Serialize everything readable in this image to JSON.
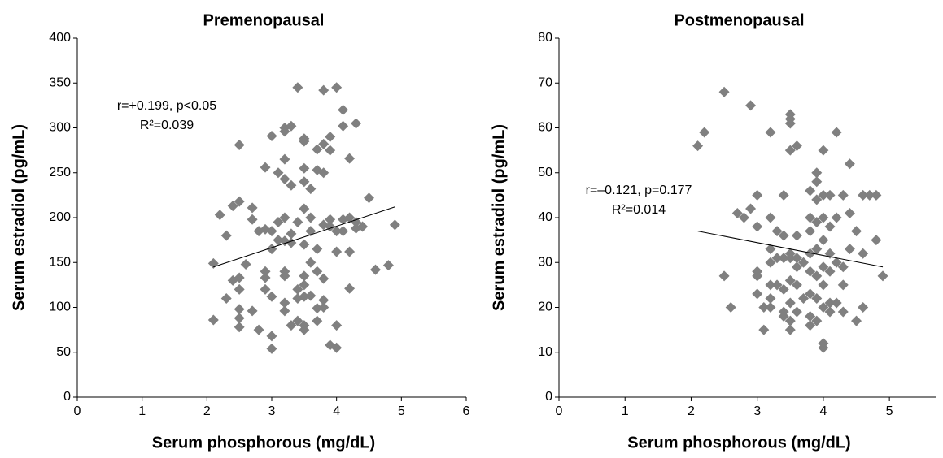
{
  "chart_data": [
    {
      "type": "scatter",
      "title": "Premenopausal",
      "x_label": "Serum phosphorous (mg/dL)",
      "y_label": "Serum estradiol (pg/mL)",
      "xlim": [
        0,
        6
      ],
      "xticks": [
        0,
        1,
        2,
        3,
        4,
        5,
        6
      ],
      "ylim": [
        0,
        400
      ],
      "yticks": [
        0,
        50,
        100,
        150,
        200,
        250,
        300,
        350,
        400
      ],
      "color": "#808080",
      "x": [
        2.1,
        2.1,
        2.2,
        2.3,
        2.3,
        2.4,
        2.4,
        2.5,
        2.5,
        2.5,
        2.5,
        2.5,
        2.5,
        2.5,
        2.6,
        2.7,
        2.7,
        2.7,
        2.8,
        2.8,
        2.9,
        2.9,
        2.9,
        2.9,
        2.9,
        3.0,
        3.0,
        3.0,
        3.0,
        3.0,
        3.0,
        3.1,
        3.1,
        3.1,
        3.2,
        3.2,
        3.2,
        3.2,
        3.2,
        3.2,
        3.2,
        3.2,
        3.2,
        3.2,
        3.3,
        3.3,
        3.3,
        3.3,
        3.3,
        3.4,
        3.4,
        3.4,
        3.4,
        3.4,
        3.5,
        3.5,
        3.5,
        3.5,
        3.5,
        3.5,
        3.5,
        3.5,
        3.5,
        3.5,
        3.5,
        3.6,
        3.6,
        3.6,
        3.6,
        3.6,
        3.7,
        3.7,
        3.7,
        3.7,
        3.7,
        3.7,
        3.8,
        3.8,
        3.8,
        3.8,
        3.8,
        3.8,
        3.8,
        3.9,
        3.9,
        3.9,
        3.9,
        3.9,
        4.0,
        4.0,
        4.0,
        4.0,
        4.0,
        4.1,
        4.1,
        4.1,
        4.1,
        4.2,
        4.2,
        4.2,
        4.2,
        4.3,
        4.3,
        4.3,
        4.4,
        4.5,
        4.6,
        4.8,
        4.9
      ],
      "values": [
        86,
        149,
        203,
        180,
        110,
        213,
        130,
        218,
        133,
        120,
        98,
        88,
        78,
        281,
        148,
        198,
        211,
        96,
        75,
        185,
        256,
        187,
        140,
        133,
        120,
        68,
        54,
        291,
        165,
        185,
        112,
        250,
        195,
        175,
        296,
        300,
        265,
        243,
        200,
        174,
        140,
        135,
        105,
        96,
        302,
        236,
        182,
        172,
        80,
        345,
        195,
        120,
        110,
        85,
        288,
        285,
        255,
        240,
        210,
        170,
        135,
        125,
        112,
        80,
        75,
        232,
        200,
        185,
        150,
        113,
        276,
        253,
        165,
        140,
        99,
        85,
        342,
        282,
        250,
        192,
        132,
        108,
        100,
        290,
        275,
        198,
        190,
        58,
        345,
        185,
        162,
        80,
        55,
        320,
        302,
        198,
        185,
        266,
        200,
        162,
        121,
        305,
        195,
        188,
        190,
        222,
        142,
        147,
        192
      ],
      "trend": {
        "x": [
          2.1,
          4.9
        ],
        "y": [
          145,
          212
        ]
      },
      "annotations": [
        "r=+0.199, p<0.05",
        "R²=0.039"
      ]
    },
    {
      "type": "scatter",
      "title": "Postmenopausal",
      "x_label": "Serum phosphorous (mg/dL)",
      "y_label": "Serum estradiol (pg/mL)",
      "xlim": [
        0,
        5.7
      ],
      "xticks": [
        0,
        1,
        2,
        3,
        4,
        5
      ],
      "ylim": [
        0,
        80
      ],
      "yticks": [
        0,
        10,
        20,
        30,
        40,
        50,
        60,
        70,
        80
      ],
      "color": "#808080",
      "x": [
        2.1,
        2.2,
        2.5,
        2.5,
        2.6,
        2.7,
        2.8,
        2.9,
        2.9,
        3.0,
        3.0,
        3.0,
        3.0,
        3.0,
        3.1,
        3.1,
        3.2,
        3.2,
        3.2,
        3.2,
        3.2,
        3.2,
        3.2,
        3.3,
        3.3,
        3.3,
        3.4,
        3.4,
        3.4,
        3.4,
        3.4,
        3.4,
        3.5,
        3.5,
        3.5,
        3.5,
        3.5,
        3.5,
        3.5,
        3.5,
        3.5,
        3.5,
        3.6,
        3.6,
        3.6,
        3.6,
        3.6,
        3.6,
        3.7,
        3.7,
        3.8,
        3.8,
        3.8,
        3.8,
        3.8,
        3.8,
        3.8,
        3.8,
        3.9,
        3.9,
        3.9,
        3.9,
        3.9,
        3.9,
        3.9,
        3.9,
        4.0,
        4.0,
        4.0,
        4.0,
        4.0,
        4.0,
        4.0,
        4.0,
        4.0,
        4.1,
        4.1,
        4.1,
        4.1,
        4.1,
        4.1,
        4.2,
        4.2,
        4.2,
        4.2,
        4.3,
        4.3,
        4.3,
        4.3,
        4.4,
        4.4,
        4.4,
        4.5,
        4.5,
        4.6,
        4.6,
        4.6,
        4.7,
        4.8,
        4.8,
        4.9
      ],
      "values": [
        56,
        59,
        68,
        27,
        20,
        41,
        40,
        65,
        42,
        45,
        38,
        28,
        27,
        23,
        20,
        15,
        59,
        40,
        33,
        30,
        25,
        22,
        20,
        37,
        31,
        25,
        45,
        36,
        31,
        24,
        19,
        18,
        63,
        62,
        61,
        55,
        32,
        31,
        26,
        21,
        17,
        15,
        56,
        36,
        31,
        29,
        25,
        19,
        30,
        22,
        46,
        40,
        37,
        32,
        28,
        23,
        18,
        16,
        50,
        48,
        44,
        39,
        33,
        27,
        22,
        17,
        55,
        45,
        40,
        35,
        29,
        25,
        20,
        12,
        11,
        45,
        38,
        32,
        28,
        21,
        19,
        59,
        40,
        30,
        21,
        45,
        29,
        25,
        19,
        52,
        41,
        33,
        17,
        37,
        45,
        20,
        32,
        45,
        45,
        35,
        27
      ],
      "trend": {
        "x": [
          2.1,
          4.9
        ],
        "y": [
          37,
          29
        ]
      },
      "annotations": [
        "r=–0.121, p=0.177",
        "R²=0.014"
      ]
    }
  ]
}
